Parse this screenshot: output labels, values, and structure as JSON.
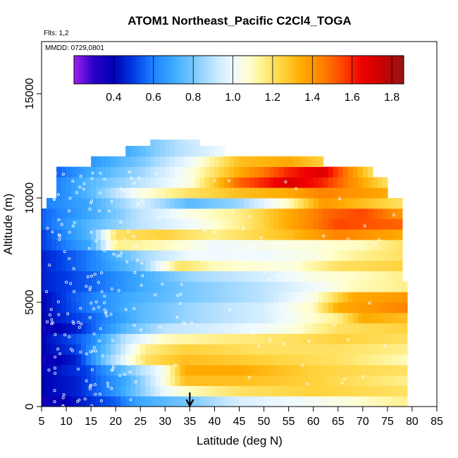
{
  "chart_data": {
    "type": "heatmap",
    "title": "ATOM1 Northeast_Pacific C2Cl4_TOGA",
    "flights_label": "Flts: 1,2",
    "date_label": "MMDD: 0729,0801",
    "xlabel": "Latitude (deg N)",
    "ylabel": "Altitude (m)",
    "xlim": [
      5,
      85
    ],
    "ylim": [
      0,
      17500
    ],
    "x_ticks": [
      5,
      10,
      15,
      20,
      25,
      30,
      35,
      40,
      45,
      50,
      55,
      60,
      65,
      70,
      75,
      80,
      85
    ],
    "y_ticks": [
      0,
      5000,
      10000,
      15000
    ],
    "colorbar": {
      "range": [
        0.2,
        1.86
      ],
      "ticks": [
        0.4,
        0.6,
        0.8,
        1.0,
        1.2,
        1.4,
        1.6,
        1.8
      ],
      "tick_labels": [
        "0.4",
        "0.6",
        "0.8",
        "1.0",
        "1.2",
        "1.4",
        "1.6",
        "1.8"
      ]
    },
    "arrow_marker_lat": 35,
    "altitude_bands": [
      {
        "alt": [
          0,
          500
        ],
        "lat": [
          5,
          79
        ],
        "points": [
          [
            5,
            0.35
          ],
          [
            10,
            0.4
          ],
          [
            20,
            0.55
          ],
          [
            25,
            0.7
          ],
          [
            35,
            0.8
          ],
          [
            45,
            0.95
          ],
          [
            55,
            1.0
          ],
          [
            65,
            1.05
          ],
          [
            79,
            1.15
          ]
        ]
      },
      {
        "alt": [
          500,
          1000
        ],
        "lat": [
          5,
          79
        ],
        "points": [
          [
            5,
            0.4
          ],
          [
            12,
            0.45
          ],
          [
            20,
            0.65
          ],
          [
            26,
            0.85
          ],
          [
            30,
            1.0
          ],
          [
            35,
            1.1
          ],
          [
            45,
            1.2
          ],
          [
            60,
            1.25
          ],
          [
            79,
            1.2
          ]
        ]
      },
      {
        "alt": [
          1000,
          1500
        ],
        "lat": [
          5,
          79
        ],
        "points": [
          [
            5,
            0.4
          ],
          [
            12,
            0.45
          ],
          [
            22,
            0.7
          ],
          [
            28,
            0.95
          ],
          [
            34,
            1.3
          ],
          [
            45,
            1.3
          ],
          [
            60,
            1.25
          ],
          [
            79,
            1.15
          ]
        ]
      },
      {
        "alt": [
          1500,
          2000
        ],
        "lat": [
          5,
          79
        ],
        "points": [
          [
            5,
            0.4
          ],
          [
            14,
            0.5
          ],
          [
            24,
            0.85
          ],
          [
            30,
            1.05
          ],
          [
            34,
            1.35
          ],
          [
            45,
            1.35
          ],
          [
            60,
            1.25
          ],
          [
            79,
            1.2
          ]
        ]
      },
      {
        "alt": [
          2000,
          2500
        ],
        "lat": [
          5,
          79
        ],
        "points": [
          [
            5,
            0.35
          ],
          [
            12,
            0.45
          ],
          [
            18,
            0.8
          ],
          [
            26,
            1.2
          ],
          [
            34,
            1.3
          ],
          [
            50,
            1.25
          ],
          [
            65,
            1.2
          ],
          [
            79,
            1.1
          ]
        ]
      },
      {
        "alt": [
          2500,
          3000
        ],
        "lat": [
          5,
          79
        ],
        "points": [
          [
            5,
            0.4
          ],
          [
            12,
            0.5
          ],
          [
            20,
            0.85
          ],
          [
            26,
            1.15
          ],
          [
            34,
            1.25
          ],
          [
            50,
            1.2
          ],
          [
            65,
            1.2
          ],
          [
            79,
            1.15
          ]
        ]
      },
      {
        "alt": [
          3000,
          3500
        ],
        "lat": [
          5,
          79
        ],
        "points": [
          [
            5,
            0.4
          ],
          [
            15,
            0.6
          ],
          [
            22,
            0.9
          ],
          [
            30,
            1.1
          ],
          [
            40,
            1.15
          ],
          [
            55,
            1.2
          ],
          [
            65,
            1.25
          ],
          [
            79,
            1.2
          ]
        ]
      },
      {
        "alt": [
          3500,
          4000
        ],
        "lat": [
          5,
          79
        ],
        "points": [
          [
            5,
            0.35
          ],
          [
            12,
            0.45
          ],
          [
            22,
            0.75
          ],
          [
            30,
            0.9
          ],
          [
            40,
            0.95
          ],
          [
            55,
            1.05
          ],
          [
            65,
            1.2
          ],
          [
            79,
            1.25
          ]
        ]
      },
      {
        "alt": [
          4000,
          4500
        ],
        "lat": [
          5,
          79
        ],
        "points": [
          [
            5,
            0.4
          ],
          [
            15,
            0.55
          ],
          [
            25,
            0.75
          ],
          [
            35,
            0.85
          ],
          [
            50,
            0.95
          ],
          [
            65,
            1.15
          ],
          [
            70,
            1.35
          ],
          [
            79,
            1.3
          ]
        ]
      },
      {
        "alt": [
          4500,
          5000
        ],
        "lat": [
          5,
          79
        ],
        "points": [
          [
            5,
            0.4
          ],
          [
            15,
            0.6
          ],
          [
            25,
            0.75
          ],
          [
            35,
            0.85
          ],
          [
            50,
            0.95
          ],
          [
            60,
            1.1
          ],
          [
            65,
            1.35
          ],
          [
            79,
            1.45
          ]
        ]
      },
      {
        "alt": [
          5000,
          5500
        ],
        "lat": [
          5,
          79
        ],
        "points": [
          [
            5,
            0.4
          ],
          [
            12,
            0.55
          ],
          [
            22,
            0.7
          ],
          [
            35,
            0.8
          ],
          [
            50,
            0.9
          ],
          [
            60,
            1.05
          ],
          [
            68,
            1.35
          ],
          [
            79,
            1.4
          ]
        ]
      },
      {
        "alt": [
          5500,
          6000
        ],
        "lat": [
          5,
          79
        ],
        "points": [
          [
            5,
            0.45
          ],
          [
            15,
            0.55
          ],
          [
            25,
            0.7
          ],
          [
            35,
            0.8
          ],
          [
            50,
            0.9
          ],
          [
            60,
            1.0
          ],
          [
            68,
            1.1
          ],
          [
            79,
            1.15
          ]
        ]
      },
      {
        "alt": [
          6000,
          6500
        ],
        "lat": [
          5,
          78
        ],
        "points": [
          [
            5,
            0.45
          ],
          [
            15,
            0.55
          ],
          [
            25,
            0.7
          ],
          [
            35,
            0.85
          ],
          [
            50,
            0.95
          ],
          [
            60,
            1.05
          ],
          [
            70,
            1.1
          ],
          [
            78,
            1.15
          ]
        ]
      },
      {
        "alt": [
          6500,
          7000
        ],
        "lat": [
          5,
          78
        ],
        "points": [
          [
            5,
            0.45
          ],
          [
            15,
            0.6
          ],
          [
            25,
            0.8
          ],
          [
            33,
            1.2
          ],
          [
            40,
            1.1
          ],
          [
            55,
            1.05
          ],
          [
            65,
            1.2
          ],
          [
            78,
            1.25
          ]
        ]
      },
      {
        "alt": [
          7000,
          7500
        ],
        "lat": [
          5,
          78
        ],
        "points": [
          [
            5,
            0.45
          ],
          [
            15,
            0.6
          ],
          [
            25,
            0.85
          ],
          [
            35,
            1.0
          ],
          [
            50,
            1.0
          ],
          [
            60,
            1.05
          ],
          [
            70,
            1.15
          ],
          [
            78,
            1.2
          ]
        ]
      },
      {
        "alt": [
          7500,
          8000
        ],
        "lat": [
          5,
          78
        ],
        "points": [
          [
            5,
            0.5
          ],
          [
            15,
            0.7
          ],
          [
            20,
            1.15
          ],
          [
            30,
            1.1
          ],
          [
            40,
            1.0
          ],
          [
            55,
            1.05
          ],
          [
            70,
            1.1
          ],
          [
            78,
            1.2
          ]
        ]
      },
      {
        "alt": [
          8000,
          8500
        ],
        "lat": [
          5,
          78
        ],
        "points": [
          [
            5,
            0.5
          ],
          [
            15,
            0.75
          ],
          [
            20,
            1.2
          ],
          [
            30,
            1.25
          ],
          [
            40,
            1.15
          ],
          [
            55,
            1.3
          ],
          [
            65,
            1.45
          ],
          [
            78,
            1.35
          ]
        ]
      },
      {
        "alt": [
          8500,
          9000
        ],
        "lat": [
          5,
          78
        ],
        "points": [
          [
            5,
            0.55
          ],
          [
            15,
            0.75
          ],
          [
            25,
            0.9
          ],
          [
            35,
            1.0
          ],
          [
            45,
            1.15
          ],
          [
            55,
            1.35
          ],
          [
            65,
            1.55
          ],
          [
            78,
            1.5
          ]
        ]
      },
      {
        "alt": [
          9000,
          9500
        ],
        "lat": [
          5,
          78
        ],
        "points": [
          [
            5,
            0.55
          ],
          [
            15,
            0.7
          ],
          [
            25,
            0.9
          ],
          [
            35,
            1.05
          ],
          [
            45,
            1.15
          ],
          [
            55,
            1.35
          ],
          [
            63,
            1.5
          ],
          [
            70,
            1.55
          ],
          [
            78,
            1.4
          ]
        ]
      },
      {
        "alt": [
          9500,
          10000
        ],
        "lat": [
          6,
          78
        ],
        "points": [
          [
            6,
            0.6
          ],
          [
            15,
            0.7
          ],
          [
            25,
            0.95
          ],
          [
            35,
            0.75
          ],
          [
            45,
            0.85
          ],
          [
            55,
            1.1
          ],
          [
            62,
            1.4
          ],
          [
            70,
            1.3
          ],
          [
            78,
            1.2
          ]
        ]
      },
      {
        "alt": [
          10000,
          10500
        ],
        "lat": [
          8,
          75
        ],
        "points": [
          [
            8,
            0.6
          ],
          [
            15,
            0.75
          ],
          [
            25,
            1.05
          ],
          [
            35,
            1.2
          ],
          [
            45,
            1.3
          ],
          [
            55,
            1.35
          ],
          [
            62,
            1.45
          ],
          [
            75,
            1.35
          ]
        ]
      },
      {
        "alt": [
          10500,
          11000
        ],
        "lat": [
          8,
          75
        ],
        "points": [
          [
            8,
            0.6
          ],
          [
            15,
            0.75
          ],
          [
            25,
            0.9
          ],
          [
            35,
            1.05
          ],
          [
            45,
            1.5
          ],
          [
            55,
            1.7
          ],
          [
            62,
            1.6
          ],
          [
            75,
            1.2
          ]
        ]
      },
      {
        "alt": [
          11000,
          11500
        ],
        "lat": [
          8,
          72
        ],
        "points": [
          [
            8,
            0.55
          ],
          [
            15,
            0.7
          ],
          [
            25,
            0.85
          ],
          [
            35,
            1.05
          ],
          [
            45,
            1.35
          ],
          [
            55,
            1.6
          ],
          [
            62,
            1.7
          ],
          [
            72,
            1.2
          ]
        ]
      },
      {
        "alt": [
          11500,
          12000
        ],
        "lat": [
          15,
          62
        ],
        "points": [
          [
            15,
            0.65
          ],
          [
            25,
            0.8
          ],
          [
            35,
            1.0
          ],
          [
            45,
            1.3
          ],
          [
            55,
            1.35
          ],
          [
            62,
            1.25
          ]
        ]
      },
      {
        "alt": [
          12000,
          12500
        ],
        "lat": [
          22,
          42
        ],
        "points": [
          [
            22,
            0.7
          ],
          [
            30,
            0.85
          ],
          [
            42,
            1.0
          ]
        ]
      },
      {
        "alt": [
          12500,
          12800
        ],
        "lat": [
          27,
          37
        ],
        "points": [
          [
            27,
            0.8
          ],
          [
            37,
            0.95
          ]
        ]
      }
    ]
  }
}
